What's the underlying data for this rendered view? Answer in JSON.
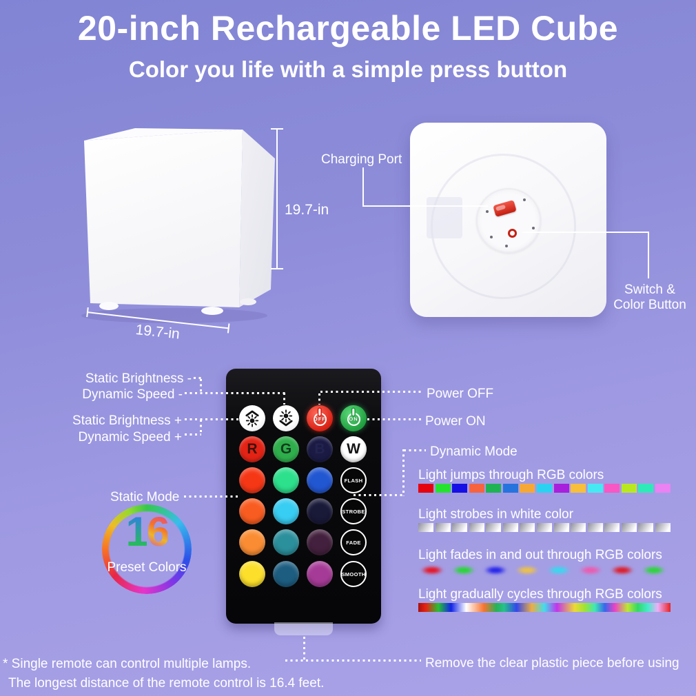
{
  "header": {
    "title": "20-inch Rechargeable LED Cube",
    "subtitle": "Color you life with a simple press button"
  },
  "front_view": {
    "height_label": "19.7-in",
    "width_label": "19.7-in"
  },
  "bottom_view": {
    "charging_port": "Charging Port",
    "switch_line1": "Switch &",
    "switch_line2": "Color Button"
  },
  "remote": {
    "labels": {
      "static_brightness_minus": "Static Brightness -",
      "dynamic_speed_minus": "Dynamic Speed -",
      "static_brightness_plus": "Static Brightness +",
      "dynamic_speed_plus": "Dynamic Speed +",
      "power_off": "Power OFF",
      "power_on": "Power ON",
      "dynamic_mode": "Dynamic Mode",
      "static_mode": "Static Mode"
    },
    "power_off_text": "OFF",
    "power_on_text": "ON",
    "letter_buttons": [
      {
        "label": "R",
        "bg": "#e32315",
        "fg": "#3f120c"
      },
      {
        "label": "G",
        "bg": "#2fae4c",
        "fg": "#123c1c"
      },
      {
        "label": "B",
        "bg": "#1a1a44",
        "fg": "#23234f"
      },
      {
        "label": "W",
        "bg": "#ffffff",
        "fg": "#141414"
      }
    ],
    "color_grid": [
      [
        "#f63716",
        "#2ce08c",
        "#2257d2"
      ],
      [
        "#f95c20",
        "#38cdf2",
        "#191938"
      ],
      [
        "#fa8d33",
        "#2b8f9c",
        "#43203d"
      ],
      [
        "#fcdf2b",
        "#1d5d80",
        "#a63b97"
      ]
    ],
    "mode_buttons": [
      "FLASH",
      "STROBE",
      "FADE",
      "SMOOTH"
    ],
    "preset": {
      "number": "16",
      "caption": "Preset Colors",
      "ring_colors": [
        "#35c94a 0deg",
        "#38bdec 50deg",
        "#2b50e8 105deg",
        "#7c36e8 140deg",
        "#e635c9 185deg",
        "#e82747 230deg",
        "#f87723 272deg",
        "#edbd27 305deg",
        "#96d92f 335deg",
        "#35c94a 360deg"
      ]
    }
  },
  "modes": [
    {
      "label": "Light jumps through RGB colors",
      "type": "blocks",
      "colors": [
        "#e60310",
        "#26e230",
        "#150fe6",
        "#f8633f",
        "#1fb354",
        "#2673de",
        "#f6a836",
        "#2ad2f2",
        "#a81fdc",
        "#f7bf3b",
        "#46e9f3",
        "#f957c3",
        "#b9e821",
        "#2fe9b9",
        "#ea82f3"
      ]
    },
    {
      "label": "Light strobes in white color",
      "type": "strobe",
      "count": 15
    },
    {
      "label": "Light fades in and out through RGB colors",
      "type": "fade",
      "colors": [
        "#e8101e",
        "#22d92e",
        "#2121ea",
        "#eec244",
        "#35daee",
        "#ee58ad",
        "#de1822",
        "#27d832"
      ]
    },
    {
      "label": "Light  gradually cycles through RGB colors",
      "type": "gradient",
      "stops": [
        "#a81111 0%",
        "#e82211 3%",
        "#26c233 8%",
        "#1222e8 13%",
        "#ffffff 19%",
        "#f8742f 26%",
        "#27b257 31%",
        "#26c289 34%",
        "#3347ec 39%",
        "#ecad43 45%",
        "#43dcec 50%",
        "#c433ec 55%",
        "#ecd934 62%",
        "#9fe333 66%",
        "#3fe8b4 70%",
        "#3766ec 74%",
        "#ec43c6 78%",
        "#bce833 83%",
        "#33d966 87%",
        "#43ecc9 91%",
        "#ecaef8 95%",
        "#e82222 100%"
      ]
    }
  ],
  "footnotes": {
    "line1": "* Single remote can control multiple lamps.",
    "line2": "The longest distance of the remote control is 16.4 feet.",
    "remove_note": "Remove the clear plastic piece before using"
  }
}
